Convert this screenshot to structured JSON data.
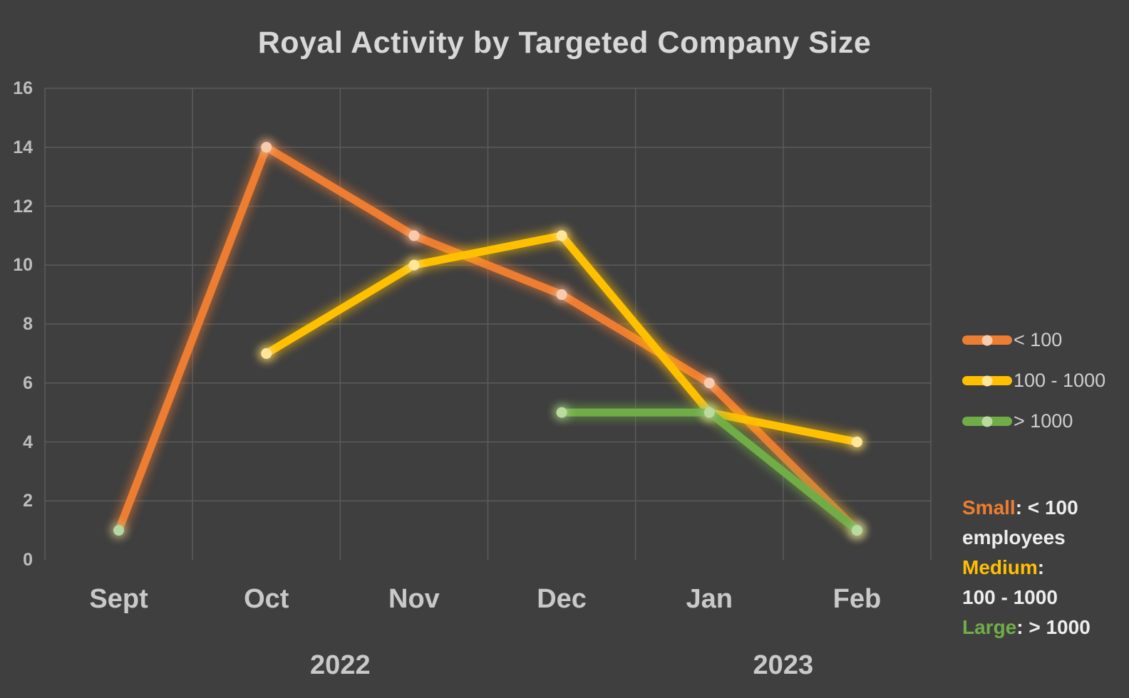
{
  "title": "Royal Activity by Targeted Company Size",
  "chart_data": {
    "type": "line",
    "title": "Royal Activity by Targeted Company Size",
    "categories": [
      "Sept",
      "Oct",
      "Nov",
      "Dec",
      "Jan",
      "Feb"
    ],
    "year_groups": [
      {
        "label": "2022",
        "boundary": 2
      },
      {
        "label": "2023",
        "boundary": 5
      }
    ],
    "series": [
      {
        "name": "< 100",
        "color": "#ED7D31",
        "marker_color": "#F8CBAD",
        "marker_overrides": {
          "0": "#B5D7A1"
        },
        "values": [
          1,
          14,
          11,
          9,
          6,
          1
        ]
      },
      {
        "name": "100 - 1000",
        "color": "#FFC000",
        "marker_color": "#FFE699",
        "values": [
          null,
          7,
          10,
          11,
          5,
          4
        ]
      },
      {
        "name": "> 1000",
        "color": "#70AD47",
        "marker_color": "#BBDA9E",
        "values": [
          null,
          null,
          null,
          5,
          5,
          1
        ]
      }
    ],
    "ylim": [
      0,
      16
    ],
    "ytick_step": 2,
    "xlabel": "",
    "ylabel": "",
    "grid": true,
    "legend_position": "right"
  },
  "annotation": {
    "lines": [
      {
        "segments": [
          {
            "text": "Small",
            "color": "#ED7D31"
          },
          {
            "text": ": < 100",
            "color": "#EDEDED"
          }
        ]
      },
      {
        "segments": [
          {
            "text": "employees",
            "color": "#EDEDED"
          }
        ]
      },
      {
        "segments": [
          {
            "text": "Medium",
            "color": "#FFC000"
          },
          {
            "text": ":",
            "color": "#EDEDED"
          }
        ]
      },
      {
        "segments": [
          {
            "text": "100 - 1000",
            "color": "#EDEDED"
          }
        ]
      },
      {
        "segments": [
          {
            "text": "Large",
            "color": "#70AD47"
          },
          {
            "text": ": > 1000",
            "color": "#EDEDED"
          }
        ]
      }
    ]
  },
  "colors": {
    "background": "#3F3F3F",
    "gridline": "#5B5B5B",
    "title_text": "#D8D8D8",
    "axis_tick_text": "#BDBDBD",
    "month_text": "#C9C9C9",
    "legend_text": "#CFCECE"
  }
}
